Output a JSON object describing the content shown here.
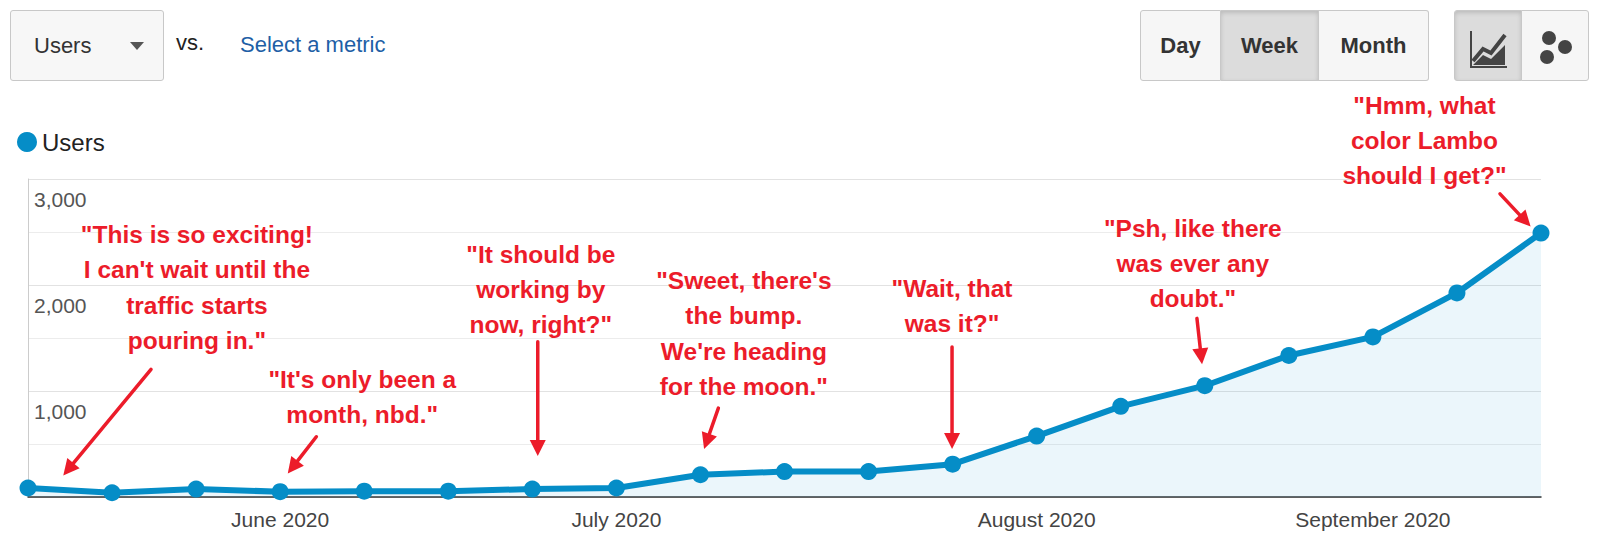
{
  "chart_data": {
    "type": "area",
    "metric_selector": "Users",
    "compare_label": "vs.",
    "compare_link": "Select a metric",
    "periods": [
      "Day",
      "Week",
      "Month"
    ],
    "period": "Week",
    "categories": [
      null,
      null,
      null,
      "June 2020",
      null,
      null,
      null,
      "July 2020",
      null,
      null,
      null,
      null,
      "August 2020",
      null,
      null,
      null,
      "September 2020",
      null,
      null
    ],
    "series": [
      {
        "name": "Users",
        "color": "#058dc7",
        "marker": "circle",
        "line_style": "solid",
        "values": [
          85,
          40,
          75,
          50,
          55,
          55,
          75,
          85,
          210,
          240,
          240,
          310,
          575,
          855,
          1050,
          1335,
          1510,
          1925,
          2490
        ]
      }
    ],
    "ylim": [
      0,
      3000
    ],
    "yticks": [
      {
        "value": 1000,
        "label": "1,000"
      },
      {
        "value": 2000,
        "label": "2,000"
      },
      {
        "value": 3000,
        "label": "3,000"
      }
    ],
    "grid": true,
    "legend": "top-left",
    "annotations": [
      "\"This is so exciting!\nI can't wait until the\ntraffic starts\npouring in.\"",
      "\"It's only been a\nmonth, nbd.\"",
      "\"It should be\nworking by\nnow, right?\"",
      "\"Sweet, there's\nthe bump.\nWe're heading\nfor the moon.\"",
      "\"Wait, that\nwas it?\"",
      "\"Psh, like there\nwas ever any\ndoubt.\"",
      "\"Hmm, what\ncolor Lambo\nshould I get?\""
    ]
  }
}
